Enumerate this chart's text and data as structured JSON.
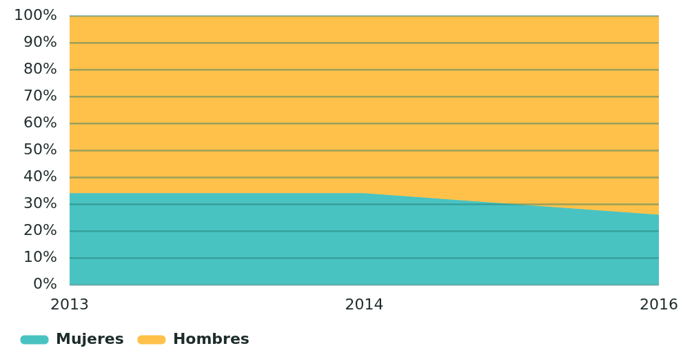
{
  "chart_data": {
    "type": "area",
    "stacked": true,
    "categories": [
      "2013",
      "2014",
      "2016"
    ],
    "series": [
      {
        "name": "Mujeres",
        "color": "#49c3c1",
        "values": [
          34,
          34,
          26
        ]
      },
      {
        "name": "Hombres",
        "color": "#ffc14a",
        "values": [
          66,
          66,
          74
        ]
      }
    ],
    "ylim": [
      0,
      100
    ],
    "yticks": [
      {
        "value": 0,
        "label": "0%"
      },
      {
        "value": 10,
        "label": "10%"
      },
      {
        "value": 20,
        "label": "20%"
      },
      {
        "value": 30,
        "label": "30%"
      },
      {
        "value": 40,
        "label": "40%"
      },
      {
        "value": 50,
        "label": "50%"
      },
      {
        "value": 60,
        "label": "60%"
      },
      {
        "value": 70,
        "label": "70%"
      },
      {
        "value": 80,
        "label": "80%"
      },
      {
        "value": 90,
        "label": "90%"
      },
      {
        "value": 100,
        "label": "100%"
      }
    ],
    "grid": "y",
    "legend": "bottom left"
  }
}
